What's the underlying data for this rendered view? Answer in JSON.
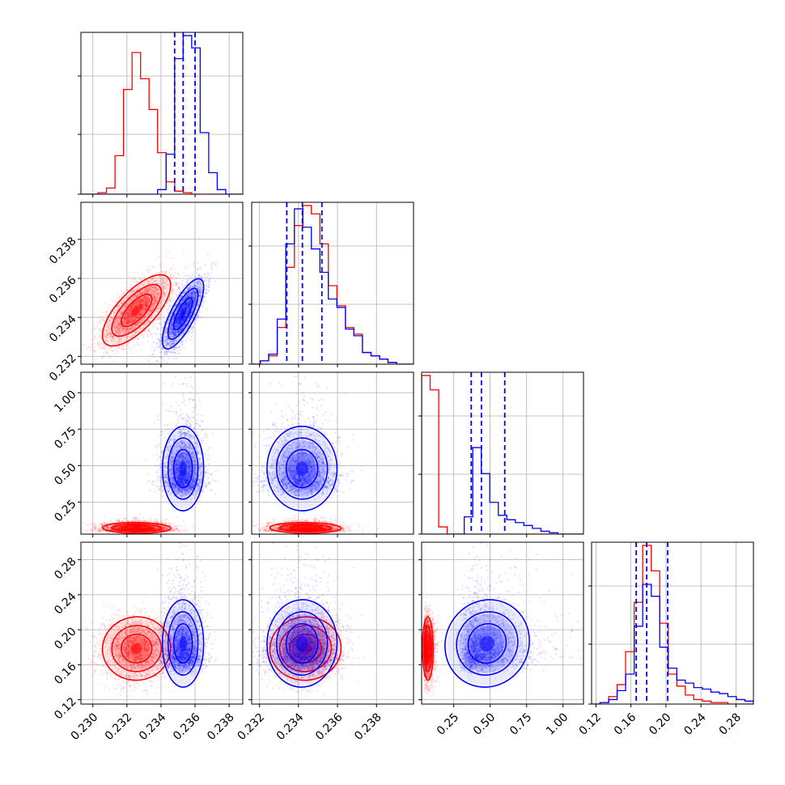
{
  "colors": {
    "series_a": "#ff0000",
    "series_b": "#0000ff",
    "grid": "#b0b0b0"
  },
  "chart_data": {
    "type": "corner",
    "title": "",
    "grid": true,
    "legend": "none",
    "parameters": [
      {
        "axis_range": [
          0.2293,
          0.2388
        ],
        "ticks": [
          "0.230",
          "0.232",
          "0.234",
          "0.236",
          "0.238"
        ],
        "tick_values": [
          0.23,
          0.232,
          0.234,
          0.236,
          0.238
        ]
      },
      {
        "axis_range": [
          0.2316,
          0.2399
        ],
        "ticks": [
          "0.232",
          "0.234",
          "0.236",
          "0.238"
        ],
        "tick_values": [
          0.232,
          0.234,
          0.236,
          0.238
        ]
      },
      {
        "axis_range": [
          0.03,
          1.14
        ],
        "ticks": [
          "0.25",
          "0.50",
          "0.75",
          "1.00"
        ],
        "tick_values": [
          0.25,
          0.5,
          0.75,
          1.0
        ]
      },
      {
        "axis_range": [
          0.115,
          0.3
        ],
        "ticks": [
          "0.12",
          "0.16",
          "0.20",
          "0.24",
          "0.28"
        ],
        "tick_values": [
          0.12,
          0.16,
          0.2,
          0.24,
          0.28
        ]
      }
    ],
    "series": [
      {
        "color": "#ff0000",
        "centers": [
          0.2326,
          0.2344,
          0.068,
          0.178
        ],
        "spreads": [
          0.001,
          0.0009,
          0.025,
          0.018
        ],
        "correlation_01": 0.7
      },
      {
        "color": "#0000ff",
        "centers": [
          0.2353,
          0.2342,
          0.44,
          0.18
        ],
        "spreads": [
          0.0006,
          0.0009,
          0.09,
          0.02
        ],
        "correlation_01": 0.75,
        "quantiles": [
          [
            0.2348,
            0.2353,
            0.236
          ],
          [
            0.2334,
            0.2342,
            0.2352
          ],
          [
            0.37,
            0.44,
            0.6
          ],
          [
            0.166,
            0.178,
            0.202
          ]
        ]
      }
    ],
    "histograms": [
      {
        "bin_edges": [
          0.2293,
          0.2298,
          0.2303,
          0.2308,
          0.2313,
          0.2318,
          0.2323,
          0.2328,
          0.2333,
          0.2338,
          0.2343,
          0.2348,
          0.2353,
          0.2358,
          0.2363,
          0.2368,
          0.2373,
          0.2378,
          0.2383,
          0.2388
        ],
        "series_a": [
          0,
          0,
          1,
          4,
          25,
          68,
          92,
          75,
          55,
          27,
          8,
          2,
          1,
          0,
          0,
          0,
          0,
          0,
          0
        ],
        "series_b": [
          0,
          0,
          0,
          0,
          0,
          0,
          0,
          0,
          0,
          3,
          26,
          88,
          103,
          95,
          40,
          14,
          3,
          0,
          0
        ]
      },
      {
        "bin_edges": [
          0.2316,
          0.23204,
          0.23247,
          0.23291,
          0.23335,
          0.23379,
          0.23422,
          0.23466,
          0.2351,
          0.23553,
          0.23597,
          0.23641,
          0.23684,
          0.23728,
          0.23772,
          0.23816,
          0.23859,
          0.23903,
          0.23947,
          0.2399
        ],
        "series_a": [
          0,
          2,
          5,
          22,
          58,
          83,
          95,
          90,
          72,
          47,
          35,
          22,
          18,
          7,
          5,
          3,
          1,
          0,
          0
        ],
        "series_b": [
          0,
          2,
          6,
          27,
          72,
          93,
          82,
          69,
          55,
          39,
          34,
          21,
          17,
          7,
          5,
          3,
          1,
          0,
          0
        ]
      },
      {
        "bin_edges": [
          0.03,
          0.0884,
          0.1468,
          0.2053,
          0.2637,
          0.3221,
          0.3805,
          0.4389,
          0.4974,
          0.5558,
          0.6142,
          0.6726,
          0.7311,
          0.7895,
          0.8479,
          0.9063,
          0.9647,
          1.0232,
          1.0816,
          1.14
        ],
        "series_a": [
          110,
          100,
          5,
          0,
          0,
          0,
          0,
          0,
          0,
          0,
          0,
          0,
          0,
          0,
          0,
          0,
          0,
          0,
          0
        ],
        "series_b": [
          0,
          0,
          0,
          0,
          0,
          12,
          60,
          42,
          22,
          13,
          10,
          8,
          6,
          4,
          2,
          1,
          0,
          0,
          0
        ]
      },
      {
        "bin_edges": [
          0.115,
          0.1247,
          0.1345,
          0.1442,
          0.1539,
          0.1637,
          0.1734,
          0.1832,
          0.1929,
          0.2026,
          0.2124,
          0.2221,
          0.2318,
          0.2416,
          0.2513,
          0.2611,
          0.2708,
          0.2805,
          0.2903,
          0.3
        ],
        "series_a": [
          0,
          1,
          5,
          13,
          35,
          68,
          106,
          89,
          54,
          20,
          12,
          6,
          3,
          2,
          1,
          1,
          0,
          0,
          0
        ],
        "series_b": [
          0,
          1,
          3,
          9,
          20,
          52,
          80,
          72,
          38,
          24,
          16,
          14,
          11,
          10,
          8,
          7,
          5,
          3,
          2
        ]
      }
    ]
  }
}
